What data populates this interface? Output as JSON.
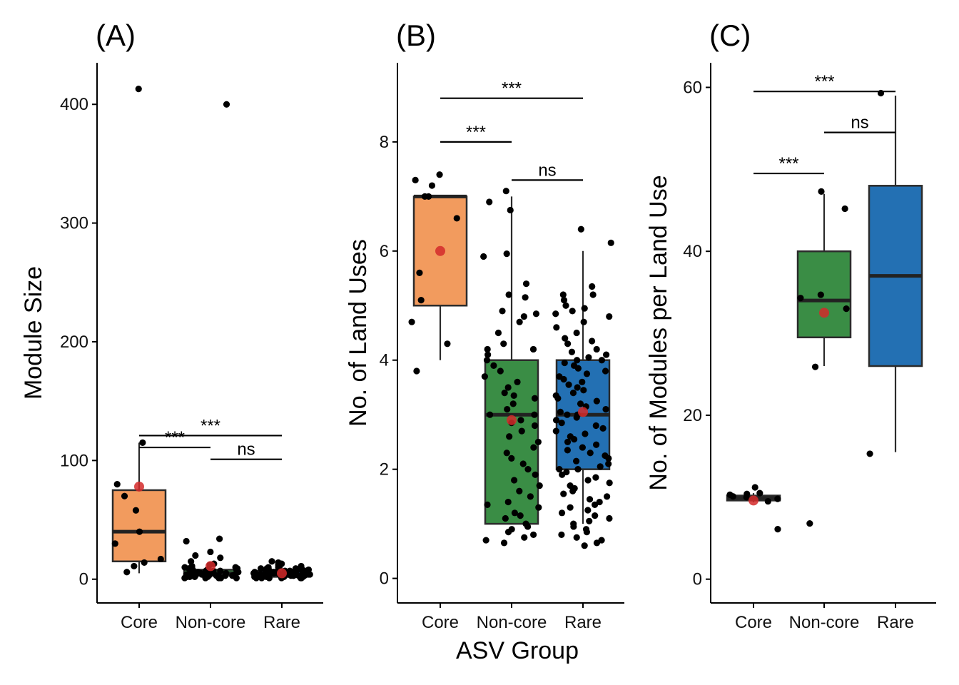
{
  "colors": {
    "Core": "#f29b5e",
    "Non-core": "#3a8d45",
    "Rare": "#2370b3",
    "mean_point": "#d42a2a",
    "raw_point": "#000000"
  },
  "shared_xlabel": "ASV Group",
  "chart_data": [
    {
      "type": "box",
      "panel_tag": "(A)",
      "ylabel": "Module Size",
      "categories": [
        "Core",
        "Non-core",
        "Rare"
      ],
      "ylim": [
        -20,
        435
      ],
      "yticks": [
        0,
        100,
        200,
        300,
        400
      ],
      "boxes": [
        {
          "category": "Core",
          "q1": 15,
          "median": 40,
          "q3": 75,
          "whisker_low": 5,
          "whisker_high": 115,
          "mean": 78
        },
        {
          "category": "Non-core",
          "q1": 3,
          "median": 5,
          "q3": 8,
          "whisker_low": 1,
          "whisker_high": 14,
          "mean": 11
        },
        {
          "category": "Rare",
          "q1": 2,
          "median": 4,
          "q3": 7,
          "whisker_low": 1,
          "whisker_high": 13,
          "mean": 5
        }
      ],
      "points": {
        "Core": [
          413,
          115,
          80,
          70,
          58,
          40,
          30,
          17,
          14,
          11,
          6
        ],
        "Non-core": [
          400,
          34,
          32,
          23,
          20,
          18,
          15,
          13,
          12,
          11,
          10,
          10,
          9,
          9,
          8,
          8,
          8,
          7,
          7,
          7,
          6,
          6,
          6,
          6,
          5,
          5,
          5,
          5,
          5,
          4,
          4,
          4,
          4,
          4,
          3,
          3,
          3,
          3,
          3,
          3,
          2,
          2,
          2,
          2,
          2,
          1,
          1,
          1,
          1,
          1
        ],
        "Rare": [
          15,
          14,
          13,
          12,
          11,
          11,
          10,
          10,
          9,
          9,
          9,
          8,
          8,
          8,
          8,
          7,
          7,
          7,
          7,
          7,
          6,
          6,
          6,
          6,
          6,
          6,
          5,
          5,
          5,
          5,
          5,
          5,
          5,
          4,
          4,
          4,
          4,
          4,
          4,
          4,
          3,
          3,
          3,
          3,
          3,
          3,
          3,
          3,
          2,
          2,
          2,
          2,
          2,
          2,
          2,
          2,
          1,
          1,
          1,
          1,
          1,
          1
        ]
      },
      "comparisons": [
        {
          "from": "Core",
          "to": "Non-core",
          "label": "***",
          "y": 111
        },
        {
          "from": "Core",
          "to": "Rare",
          "label": "***",
          "y": 121
        },
        {
          "from": "Non-core",
          "to": "Rare",
          "label": "ns",
          "y": 101
        }
      ]
    },
    {
      "type": "box",
      "panel_tag": "(B)",
      "ylabel": "No. of Land Uses",
      "categories": [
        "Core",
        "Non-core",
        "Rare"
      ],
      "ylim": [
        -0.45,
        9.45
      ],
      "yticks": [
        0,
        2,
        4,
        6,
        8
      ],
      "boxes": [
        {
          "category": "Core",
          "q1": 5,
          "median": 7,
          "q3": 7,
          "whisker_low": 4,
          "whisker_high": 7,
          "mean": 6
        },
        {
          "category": "Non-core",
          "q1": 1,
          "median": 3,
          "q3": 4,
          "whisker_low": 1,
          "whisker_high": 7,
          "mean": 2.9
        },
        {
          "category": "Rare",
          "q1": 2,
          "median": 3,
          "q3": 4,
          "whisker_low": 1,
          "whisker_high": 6,
          "mean": 3.05
        }
      ],
      "points": {
        "Core": [
          7.4,
          7.3,
          7.2,
          7.0,
          7.0,
          6.6,
          5.6,
          5.1,
          4.7,
          4.3,
          3.8
        ],
        "Non-core": [
          7.1,
          6.9,
          6.75,
          5.95,
          5.9,
          5.4,
          5.2,
          5.15,
          4.9,
          4.85,
          4.8,
          4.7,
          4.5,
          4.3,
          4.2,
          4.2,
          4.1,
          4.0,
          3.9,
          3.8,
          3.7,
          3.6,
          3.5,
          3.4,
          3.35,
          3.3,
          3.2,
          3.1,
          3.0,
          3.0,
          2.9,
          2.85,
          2.8,
          2.7,
          2.6,
          2.5,
          2.4,
          2.3,
          2.2,
          2.1,
          2.0,
          1.9,
          1.8,
          1.7,
          1.6,
          1.5,
          1.4,
          1.35,
          1.3,
          1.2,
          1.15,
          1.1,
          1.0,
          0.95,
          0.9,
          0.85,
          0.8,
          0.75,
          0.7,
          0.65
        ],
        "Rare": [
          6.4,
          6.15,
          5.35,
          5.2,
          5.2,
          5.1,
          5.0,
          4.95,
          4.9,
          4.85,
          4.8,
          4.7,
          4.6,
          4.5,
          4.4,
          4.35,
          4.3,
          4.2,
          4.15,
          4.1,
          4.05,
          4.0,
          4.0,
          3.95,
          3.9,
          3.85,
          3.8,
          3.75,
          3.7,
          3.65,
          3.6,
          3.55,
          3.5,
          3.45,
          3.4,
          3.35,
          3.3,
          3.25,
          3.2,
          3.15,
          3.1,
          3.05,
          3.0,
          3.0,
          2.95,
          2.9,
          2.85,
          2.8,
          2.75,
          2.7,
          2.65,
          2.6,
          2.55,
          2.5,
          2.45,
          2.4,
          2.35,
          2.3,
          2.25,
          2.2,
          2.15,
          2.1,
          2.05,
          2.0,
          2.0,
          1.95,
          1.9,
          1.85,
          1.8,
          1.75,
          1.7,
          1.65,
          1.6,
          1.55,
          1.5,
          1.45,
          1.4,
          1.35,
          1.3,
          1.25,
          1.2,
          1.15,
          1.1,
          1.05,
          1.0,
          0.95,
          0.9,
          0.85,
          0.8,
          0.75,
          0.7,
          0.65,
          0.6
        ],
        "note_order": []
      },
      "comparisons": [
        {
          "from": "Core",
          "to": "Non-core",
          "label": "***",
          "y": 8.0
        },
        {
          "from": "Core",
          "to": "Rare",
          "label": "***",
          "y": 8.8
        },
        {
          "from": "Non-core",
          "to": "Rare",
          "label": "ns",
          "y": 7.3
        }
      ]
    },
    {
      "type": "box",
      "panel_tag": "(C)",
      "ylabel": "No. of Modules per Land Use",
      "categories": [
        "Core",
        "Non-core",
        "Rare"
      ],
      "ylim": [
        -2.9,
        63
      ],
      "yticks": [
        0,
        20,
        40,
        60
      ],
      "boxes": [
        {
          "category": "Core",
          "q1": 9.6,
          "median": 9.9,
          "q3": 10.2,
          "whisker_low": 9.4,
          "whisker_high": 10.5,
          "mean": 9.6
        },
        {
          "category": "Non-core",
          "q1": 29.5,
          "median": 34,
          "q3": 40,
          "whisker_low": 26,
          "whisker_high": 47,
          "mean": 32.5
        },
        {
          "category": "Rare",
          "q1": 26,
          "median": 37,
          "q3": 48,
          "whisker_low": 15.5,
          "whisker_high": 59,
          "mean": null
        }
      ],
      "points": {
        "Core": [
          11.2,
          10.5,
          10.4,
          10.3,
          10.1,
          10.0,
          9.8,
          9.5,
          6.1
        ],
        "Non-core": [
          47.3,
          45.2,
          34.7,
          34.3,
          33.0,
          25.9,
          6.8
        ],
        "Rare": [
          59.3,
          15.3
        ]
      },
      "comparisons": [
        {
          "from": "Core",
          "to": "Non-core",
          "label": "***",
          "y": 49.5
        },
        {
          "from": "Core",
          "to": "Rare",
          "label": "***",
          "y": 59.5
        },
        {
          "from": "Non-core",
          "to": "Rare",
          "label": "ns",
          "y": 54.5
        }
      ]
    }
  ]
}
